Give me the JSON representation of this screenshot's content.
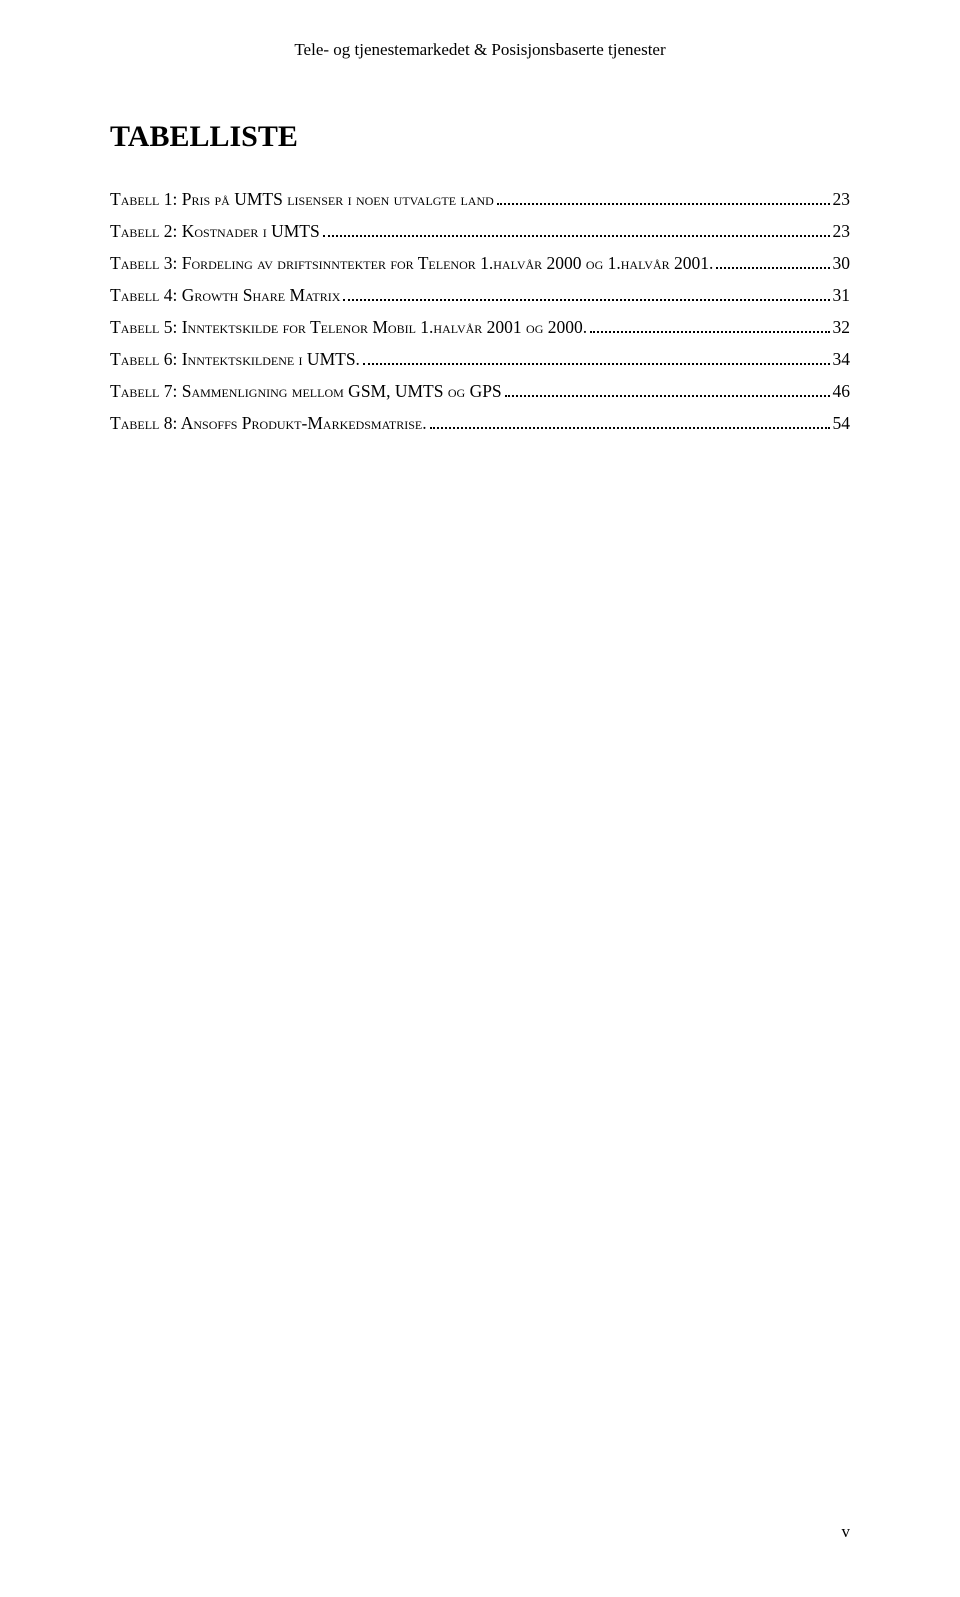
{
  "header": "Tele- og tjenestemarkedet & Posisjonsbaserte tjenester",
  "title": "TABELLISTE",
  "entries": [
    {
      "label": "Tabell 1: Pris på UMTS lisenser i noen utvalgte land",
      "page": "23"
    },
    {
      "label": "Tabell 2: Kostnader i UMTS",
      "page": "23"
    },
    {
      "label": "Tabell 3: Fordeling av driftsinntekter for Telenor 1.halvår 2000 og 1.halvår 2001.",
      "page": "30"
    },
    {
      "label": "Tabell 4: Growth Share Matrix",
      "page": "31"
    },
    {
      "label": "Tabell 5: Inntektskilde for Telenor Mobil 1.halvår 2001 og 2000.",
      "page": "32"
    },
    {
      "label": "Tabell 6: Inntektskildene i UMTS.",
      "page": "34"
    },
    {
      "label": "Tabell 7: Sammenligning mellom GSM, UMTS og GPS",
      "page": "46"
    },
    {
      "label": "Tabell 8: Ansoffs Produkt-Markedsmatrise.",
      "page": "54"
    }
  ],
  "pageNumber": "v"
}
